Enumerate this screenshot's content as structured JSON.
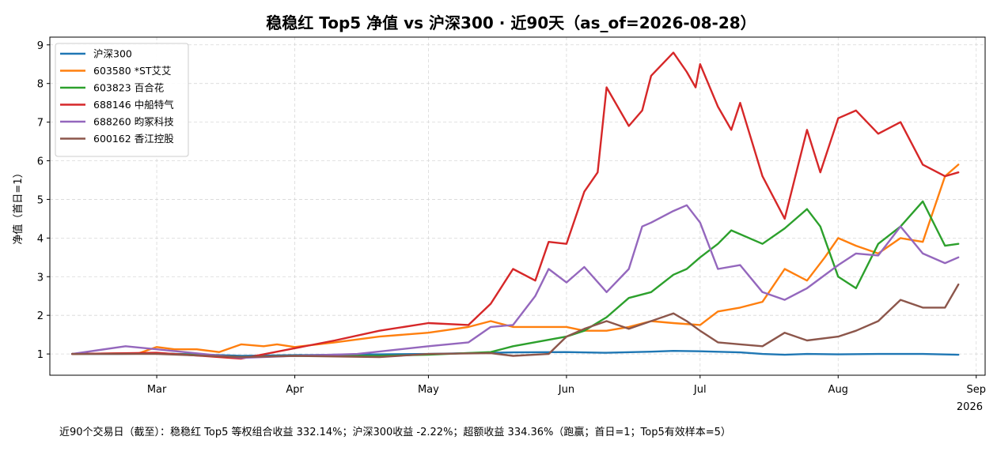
{
  "chart_data": {
    "type": "line",
    "title": "稳稳红 Top5 净值 vs 沪深300 · 近90天（as_of=2026-08-28）",
    "xlabel": "",
    "ylabel": "净值（首日=1）",
    "ylim": [
      0.45,
      9.2
    ],
    "yticks": [
      1,
      2,
      3,
      4,
      5,
      6,
      7,
      8,
      9
    ],
    "x_range": [
      "2026-02-05",
      "2026-09-03"
    ],
    "x_ticks": [
      "2026-03-01",
      "2026-04-01",
      "2026-05-01",
      "2026-06-01",
      "2026-07-01",
      "2026-08-01",
      "2026-09-01"
    ],
    "x_tick_labels": [
      "Mar",
      "Apr",
      "May",
      "Jun",
      "Jul",
      "Aug",
      "Sep"
    ],
    "x_year_label": "2026",
    "grid": true,
    "legend_position": "top-left",
    "series": [
      {
        "name": "沪深300",
        "color": "#1f77b4",
        "x": [
          "2026-02-10",
          "2026-02-20",
          "2026-03-01",
          "2026-03-10",
          "2026-03-20",
          "2026-03-25",
          "2026-04-01",
          "2026-04-10",
          "2026-04-20",
          "2026-05-01",
          "2026-05-10",
          "2026-05-20",
          "2026-06-01",
          "2026-06-10",
          "2026-06-20",
          "2026-06-25",
          "2026-07-01",
          "2026-07-10",
          "2026-07-15",
          "2026-07-20",
          "2026-07-25",
          "2026-08-01",
          "2026-08-10",
          "2026-08-20",
          "2026-08-28"
        ],
        "y": [
          1.0,
          1.0,
          1.01,
          0.99,
          0.95,
          0.96,
          0.97,
          0.98,
          0.99,
          1.0,
          1.02,
          1.04,
          1.05,
          1.03,
          1.06,
          1.08,
          1.07,
          1.04,
          1.0,
          0.98,
          1.0,
          0.99,
          1.0,
          1.0,
          0.98
        ]
      },
      {
        "name": "603580 *ST艾艾",
        "color": "#ff7f0e",
        "x": [
          "2026-02-10",
          "2026-02-25",
          "2026-03-01",
          "2026-03-05",
          "2026-03-10",
          "2026-03-15",
          "2026-03-20",
          "2026-03-25",
          "2026-03-28",
          "2026-04-01",
          "2026-04-10",
          "2026-04-20",
          "2026-05-01",
          "2026-05-10",
          "2026-05-15",
          "2026-05-20",
          "2026-06-01",
          "2026-06-05",
          "2026-06-10",
          "2026-06-15",
          "2026-06-20",
          "2026-06-25",
          "2026-07-01",
          "2026-07-05",
          "2026-07-10",
          "2026-07-15",
          "2026-07-20",
          "2026-07-25",
          "2026-07-29",
          "2026-08-01",
          "2026-08-05",
          "2026-08-10",
          "2026-08-15",
          "2026-08-20",
          "2026-08-25",
          "2026-08-28"
        ],
        "y": [
          1.0,
          1.02,
          1.18,
          1.12,
          1.12,
          1.05,
          1.25,
          1.2,
          1.25,
          1.18,
          1.3,
          1.45,
          1.55,
          1.7,
          1.85,
          1.7,
          1.7,
          1.6,
          1.6,
          1.7,
          1.85,
          1.8,
          1.75,
          2.1,
          2.2,
          2.35,
          3.2,
          2.9,
          3.5,
          4.0,
          3.8,
          3.6,
          4.0,
          3.9,
          5.6,
          5.9
        ]
      },
      {
        "name": "603823 百合花",
        "color": "#2ca02c",
        "x": [
          "2026-02-10",
          "2026-03-01",
          "2026-03-20",
          "2026-04-01",
          "2026-04-20",
          "2026-05-01",
          "2026-05-15",
          "2026-05-20",
          "2026-06-01",
          "2026-06-05",
          "2026-06-10",
          "2026-06-15",
          "2026-06-20",
          "2026-06-25",
          "2026-06-28",
          "2026-07-01",
          "2026-07-05",
          "2026-07-08",
          "2026-07-15",
          "2026-07-20",
          "2026-07-25",
          "2026-07-28",
          "2026-08-01",
          "2026-08-05",
          "2026-08-10",
          "2026-08-15",
          "2026-08-20",
          "2026-08-25",
          "2026-08-28"
        ],
        "y": [
          1.0,
          1.02,
          0.92,
          0.95,
          0.95,
          0.98,
          1.05,
          1.2,
          1.45,
          1.6,
          1.95,
          2.45,
          2.6,
          3.05,
          3.2,
          3.5,
          3.85,
          4.2,
          3.85,
          4.25,
          4.75,
          4.3,
          3.0,
          2.7,
          3.85,
          4.3,
          4.95,
          3.8,
          3.85
        ]
      },
      {
        "name": "688146 中船特气",
        "color": "#d62728",
        "x": [
          "2026-02-10",
          "2026-03-01",
          "2026-03-20",
          "2026-04-01",
          "2026-04-10",
          "2026-04-20",
          "2026-05-01",
          "2026-05-10",
          "2026-05-15",
          "2026-05-20",
          "2026-05-25",
          "2026-05-28",
          "2026-06-01",
          "2026-06-05",
          "2026-06-08",
          "2026-06-10",
          "2026-06-15",
          "2026-06-18",
          "2026-06-20",
          "2026-06-25",
          "2026-06-28",
          "2026-06-30",
          "2026-07-01",
          "2026-07-05",
          "2026-07-08",
          "2026-07-10",
          "2026-07-15",
          "2026-07-20",
          "2026-07-25",
          "2026-07-28",
          "2026-08-01",
          "2026-08-05",
          "2026-08-10",
          "2026-08-15",
          "2026-08-20",
          "2026-08-25",
          "2026-08-28"
        ],
        "y": [
          1.0,
          1.03,
          0.88,
          1.15,
          1.35,
          1.6,
          1.8,
          1.75,
          2.3,
          3.2,
          2.9,
          3.9,
          3.85,
          5.2,
          5.7,
          7.9,
          6.9,
          7.3,
          8.2,
          8.8,
          8.3,
          7.9,
          8.5,
          7.4,
          6.8,
          7.5,
          5.6,
          4.5,
          6.8,
          5.7,
          7.1,
          7.3,
          6.7,
          7.0,
          5.9,
          5.6,
          5.7
        ]
      },
      {
        "name": "688260 昀冢科技",
        "color": "#9467bd",
        "x": [
          "2026-02-10",
          "2026-02-22",
          "2026-03-01",
          "2026-03-20",
          "2026-04-01",
          "2026-04-15",
          "2026-05-01",
          "2026-05-10",
          "2026-05-15",
          "2026-05-20",
          "2026-05-25",
          "2026-05-28",
          "2026-06-01",
          "2026-06-05",
          "2026-06-10",
          "2026-06-15",
          "2026-06-18",
          "2026-06-20",
          "2026-06-25",
          "2026-06-28",
          "2026-07-01",
          "2026-07-05",
          "2026-07-10",
          "2026-07-15",
          "2026-07-20",
          "2026-07-25",
          "2026-08-01",
          "2026-08-05",
          "2026-08-10",
          "2026-08-15",
          "2026-08-20",
          "2026-08-25",
          "2026-08-28"
        ],
        "y": [
          1.0,
          1.2,
          1.12,
          0.9,
          0.95,
          1.0,
          1.2,
          1.3,
          1.7,
          1.75,
          2.5,
          3.2,
          2.85,
          3.25,
          2.6,
          3.2,
          4.3,
          4.4,
          4.7,
          4.85,
          4.4,
          3.2,
          3.3,
          2.6,
          2.4,
          2.7,
          3.3,
          3.6,
          3.55,
          4.3,
          3.6,
          3.35,
          3.5
        ]
      },
      {
        "name": "600162 香江控股",
        "color": "#8c564b",
        "x": [
          "2026-02-10",
          "2026-03-01",
          "2026-03-20",
          "2026-04-01",
          "2026-04-20",
          "2026-05-01",
          "2026-05-15",
          "2026-05-20",
          "2026-05-28",
          "2026-06-01",
          "2026-06-05",
          "2026-06-10",
          "2026-06-15",
          "2026-06-20",
          "2026-06-25",
          "2026-06-28",
          "2026-07-01",
          "2026-07-05",
          "2026-07-10",
          "2026-07-15",
          "2026-07-20",
          "2026-07-25",
          "2026-08-01",
          "2026-08-05",
          "2026-08-10",
          "2026-08-15",
          "2026-08-20",
          "2026-08-25",
          "2026-08-28"
        ],
        "y": [
          1.0,
          1.0,
          0.92,
          0.95,
          0.92,
          1.0,
          1.02,
          0.95,
          1.0,
          1.45,
          1.65,
          1.85,
          1.65,
          1.85,
          2.05,
          1.85,
          1.6,
          1.3,
          1.25,
          1.2,
          1.55,
          1.35,
          1.45,
          1.6,
          1.85,
          2.4,
          2.2,
          2.2,
          2.8
        ]
      }
    ]
  },
  "footer": "近90个交易日（截至）：稳稳红 Top5 等权组合收益 332.14%；沪深300收益 -2.22%；超额收益 334.36%（跑赢；首日=1；Top5有效样本=5）"
}
